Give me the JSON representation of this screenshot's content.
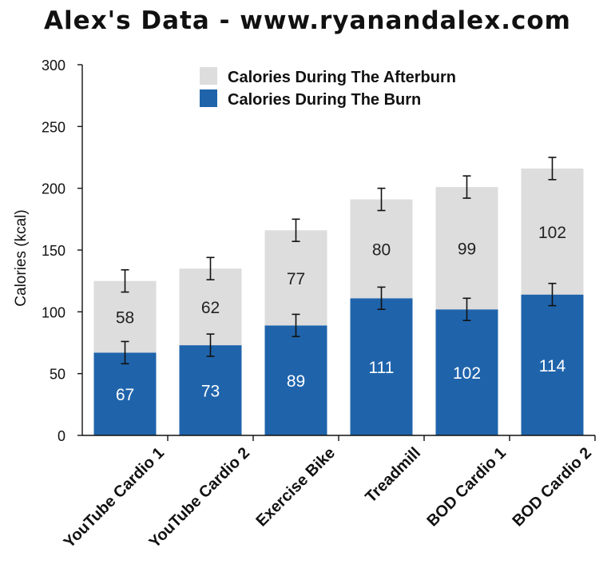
{
  "chart_data": {
    "type": "bar",
    "stacked": true,
    "title": "Alex's Data - www.ryanandalex.com",
    "xlabel": "",
    "ylabel": "Calories (kcal)",
    "ylim": [
      0,
      300
    ],
    "yticks": [
      0,
      50,
      100,
      150,
      200,
      250,
      300
    ],
    "grid": false,
    "legend_position": "top-center",
    "categories": [
      "YouTube Cardio 1",
      "YouTube Cardio 2",
      "Exercise Bike",
      "Treadmill",
      "BOD Cardio 1",
      "BOD Cardio 2"
    ],
    "series": [
      {
        "name": "Calories During The Burn",
        "values": [
          67,
          73,
          89,
          111,
          102,
          114
        ],
        "color": "#1f64ab",
        "label_color": "#ffffff",
        "error": [
          9,
          9,
          9,
          9,
          9,
          9
        ]
      },
      {
        "name": "Calories During The Afterburn",
        "values": [
          58,
          62,
          77,
          80,
          99,
          102
        ],
        "color": "#dddddd",
        "label_color": "#222222",
        "error": [
          9,
          9,
          9,
          9,
          9,
          9
        ]
      }
    ],
    "legend_order": [
      1,
      0
    ]
  }
}
